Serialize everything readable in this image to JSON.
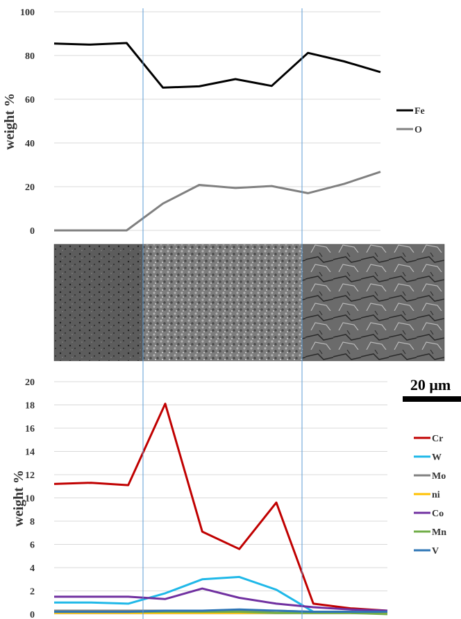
{
  "chart_data": [
    {
      "type": "line",
      "ylabel": "weight %",
      "ylim": [
        0,
        100
      ],
      "yticks": [
        0,
        20,
        40,
        60,
        80,
        100
      ],
      "x": [
        0,
        1,
        2,
        3,
        4,
        5,
        6,
        7,
        8,
        9
      ],
      "grid": true,
      "legend_position": "right",
      "series": [
        {
          "name": "Fe",
          "color": "#000000",
          "values": [
            85.5,
            85.0,
            85.7,
            65.3,
            65.9,
            69.2,
            66.1,
            81.2,
            77.3,
            72.4
          ]
        },
        {
          "name": "O",
          "color": "#808080",
          "values": [
            0,
            0,
            0,
            12.3,
            20.8,
            19.4,
            20.3,
            17.0,
            21.3,
            26.8
          ]
        }
      ]
    },
    {
      "type": "line",
      "ylabel": "weight %",
      "ylim": [
        0,
        20
      ],
      "yticks": [
        0,
        2,
        4,
        6,
        8,
        10,
        12,
        14,
        16,
        18,
        20
      ],
      "x": [
        0,
        1,
        2,
        3,
        4,
        5,
        6,
        7,
        8,
        9
      ],
      "grid": true,
      "legend_position": "right",
      "series": [
        {
          "name": "Cr",
          "color": "#c00000",
          "values": [
            11.2,
            11.3,
            11.1,
            18.1,
            7.1,
            5.6,
            9.6,
            0.9,
            0.5,
            0.3
          ]
        },
        {
          "name": "W",
          "color": "#1fb8e8",
          "values": [
            1.0,
            1.0,
            0.9,
            1.8,
            3.0,
            3.2,
            2.1,
            0.2,
            0.2,
            0.1
          ]
        },
        {
          "name": "Mo",
          "color": "#808080",
          "values": [
            0.3,
            0.3,
            0.3,
            0.3,
            0.3,
            0.3,
            0.3,
            0.2,
            0.2,
            0.1
          ]
        },
        {
          "name": "ni",
          "color": "#ffc000",
          "values": [
            0.1,
            0.1,
            0.1,
            0.1,
            0.1,
            0.1,
            0.1,
            0.1,
            0.1,
            0.1
          ]
        },
        {
          "name": "Co",
          "color": "#7030a0",
          "values": [
            1.5,
            1.5,
            1.5,
            1.3,
            2.2,
            1.4,
            0.9,
            0.6,
            0.4,
            0.3
          ]
        },
        {
          "name": "Mn",
          "color": "#70ad47",
          "values": [
            0.2,
            0.2,
            0.2,
            0.2,
            0.2,
            0.2,
            0.1,
            0.1,
            0.1,
            0.0
          ]
        },
        {
          "name": "V",
          "color": "#2e75b6",
          "values": [
            0.2,
            0.2,
            0.2,
            0.3,
            0.3,
            0.4,
            0.3,
            0.2,
            0.2,
            0.2
          ]
        }
      ]
    }
  ],
  "micrograph": {
    "scale_bar": "20 μm",
    "region_colors": [
      "#5a5a5a",
      "#7a7a7a",
      "#6e6e6e"
    ]
  },
  "colors": {
    "grid": "#d9d9d9",
    "boundary": "#5b9bd5",
    "text": "#333333"
  }
}
